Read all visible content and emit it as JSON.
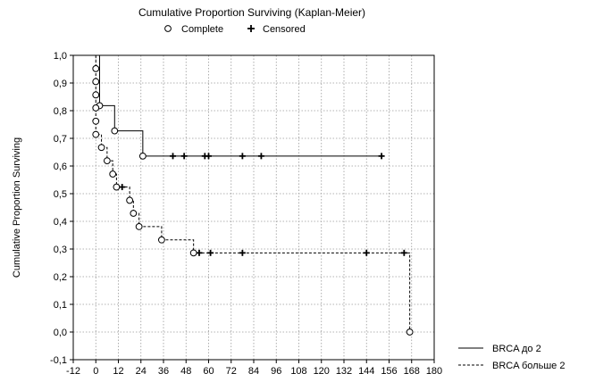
{
  "chart_data": {
    "type": "line",
    "title": "Cumulative Proportion Surviving (Kaplan-Meier)",
    "top_legend": {
      "complete_label": "Complete",
      "censored_label": "Censored"
    },
    "xlabel": "",
    "ylabel": "Cumulative Proportion Surviving",
    "xlim": [
      -12,
      180
    ],
    "ylim": [
      -0.1,
      1.0
    ],
    "x_ticks": [
      "-12",
      "0",
      "12",
      "24",
      "36",
      "48",
      "60",
      "72",
      "84",
      "96",
      "108",
      "120",
      "132",
      "144",
      "156",
      "168",
      "180"
    ],
    "y_ticks": [
      "-0,1",
      "0,0",
      "0,1",
      "0,2",
      "0,3",
      "0,4",
      "0,5",
      "0,6",
      "0,7",
      "0,8",
      "0,9",
      "1,0"
    ],
    "grid": true,
    "legend_position": "bottom-right",
    "series": [
      {
        "name": "BRCA до 2",
        "line_style": "solid",
        "steps": [
          [
            0,
            1.0
          ],
          [
            2,
            0.818
          ],
          [
            10,
            0.727
          ],
          [
            25,
            0.636
          ],
          [
            152,
            0.636
          ]
        ],
        "complete": [
          [
            2,
            0.818
          ],
          [
            10,
            0.727
          ],
          [
            25,
            0.636
          ]
        ],
        "censored": [
          [
            41,
            0.636
          ],
          [
            47,
            0.636
          ],
          [
            58,
            0.636
          ],
          [
            60,
            0.636
          ],
          [
            78,
            0.636
          ],
          [
            88,
            0.636
          ],
          [
            152,
            0.636
          ]
        ]
      },
      {
        "name": "BRCA больше 2",
        "line_style": "dashed",
        "steps": [
          [
            0,
            1.0
          ],
          [
            0,
            0.952
          ],
          [
            0,
            0.905
          ],
          [
            0,
            0.857
          ],
          [
            0,
            0.81
          ],
          [
            0,
            0.762
          ],
          [
            0,
            0.714
          ],
          [
            3,
            0.714
          ],
          [
            3,
            0.667
          ],
          [
            6,
            0.667
          ],
          [
            6,
            0.619
          ],
          [
            9,
            0.619
          ],
          [
            9,
            0.571
          ],
          [
            11,
            0.571
          ],
          [
            11,
            0.524
          ],
          [
            18,
            0.524
          ],
          [
            18,
            0.476
          ],
          [
            20,
            0.476
          ],
          [
            20,
            0.429
          ],
          [
            23,
            0.429
          ],
          [
            23,
            0.381
          ],
          [
            35,
            0.381
          ],
          [
            35,
            0.333
          ],
          [
            52,
            0.333
          ],
          [
            52,
            0.286
          ],
          [
            167,
            0.286
          ],
          [
            167,
            0.0
          ]
        ],
        "complete": [
          [
            0,
            0.952
          ],
          [
            0,
            0.905
          ],
          [
            0,
            0.857
          ],
          [
            0,
            0.81
          ],
          [
            0,
            0.762
          ],
          [
            0,
            0.714
          ],
          [
            3,
            0.667
          ],
          [
            6,
            0.619
          ],
          [
            9,
            0.571
          ],
          [
            11,
            0.524
          ],
          [
            18,
            0.476
          ],
          [
            20,
            0.429
          ],
          [
            23,
            0.381
          ],
          [
            35,
            0.333
          ],
          [
            52,
            0.286
          ],
          [
            167,
            0.0
          ]
        ],
        "censored": [
          [
            14,
            0.524
          ],
          [
            55,
            0.286
          ],
          [
            61,
            0.286
          ],
          [
            78,
            0.286
          ],
          [
            144,
            0.286
          ],
          [
            164,
            0.286
          ]
        ]
      }
    ]
  }
}
